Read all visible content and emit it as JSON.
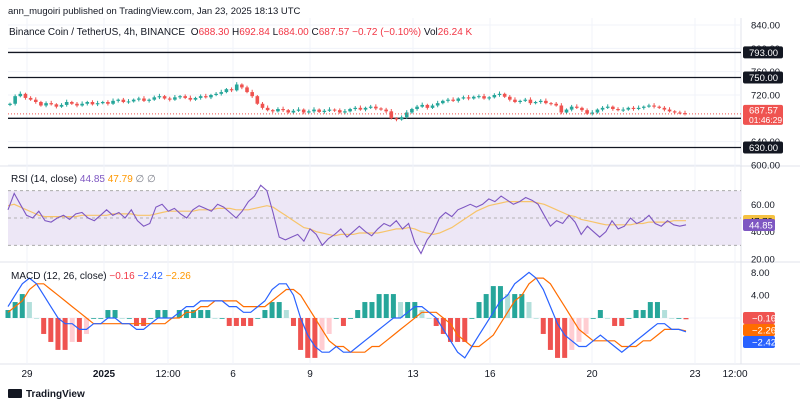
{
  "publisher": "ann_mugoiri published on TradingView.com, Jan 23, 2025 18:13 UTC",
  "instrument": {
    "title": "Binance Coin / TetherUS, 4h, BINANCE",
    "o_label": "O",
    "o": "688.30",
    "h_label": "H",
    "h": "692.84",
    "l_label": "L",
    "l": "684.00",
    "c_label": "C",
    "c": "687.57",
    "change": "−0.72 (−0.10%)",
    "vol_label": "Vol",
    "vol": "26.24 K"
  },
  "rsi_legend": {
    "name": "RSI (14, close)",
    "v1": "44.85",
    "v2": "47.79",
    "extra": "∅ ∅"
  },
  "macd_legend": {
    "name": "MACD (12, 26, close)",
    "v1": "−0.16",
    "v2": "−2.42",
    "v3": "−2.26"
  },
  "logo_text": "TradingView",
  "colors": {
    "up": "#26a69a",
    "down": "#ef5350",
    "rsi": "#7e57c2",
    "rsi_ma": "#f7c46a",
    "macd": "#2962ff",
    "signal": "#ff6d00",
    "hist_up": "#26a69a",
    "hist_up_light": "#b2dfdb",
    "hist_down": "#ef5350",
    "hist_down_light": "#ffcdd2",
    "rsi_band": "#ede7f6"
  },
  "chart_data": [
    {
      "type": "candlestick",
      "title": "Binance Coin / TetherUS, 4h, BINANCE",
      "ylim": [
        600,
        840
      ],
      "y_ticks": [
        "840.00",
        "800.00",
        "760.00",
        "720.00",
        "680.00",
        "640.00",
        "600.00"
      ],
      "x_ticks": [
        "29",
        "2025",
        "12:00",
        "6",
        "9",
        "13",
        "16",
        "20",
        "23",
        "12:00"
      ],
      "horizontal_levels": [
        {
          "value": 793,
          "label": "793.00"
        },
        {
          "value": 750,
          "label": "750.00"
        },
        {
          "value": 680,
          "label": "680.00"
        },
        {
          "value": 630,
          "label": "630.00"
        }
      ],
      "last_price": {
        "value": 687.57,
        "label": "687.57",
        "countdown": "01:46:29"
      },
      "close_path": [
        705,
        718,
        722,
        715,
        712,
        708,
        702,
        706,
        704,
        700,
        703,
        708,
        705,
        702,
        705,
        708,
        704,
        706,
        708,
        705,
        710,
        712,
        708,
        709,
        712,
        714,
        710,
        712,
        716,
        718,
        714,
        712,
        716,
        718,
        715,
        712,
        715,
        718,
        716,
        720,
        722,
        725,
        730,
        728,
        738,
        733,
        725,
        718,
        705,
        698,
        694,
        692,
        696,
        694,
        690,
        693,
        695,
        690,
        692,
        695,
        691,
        693,
        695,
        694,
        690,
        692,
        696,
        698,
        695,
        698,
        700,
        697,
        695,
        692,
        680,
        678,
        682,
        690,
        696,
        700,
        703,
        698,
        702,
        706,
        710,
        712,
        710,
        714,
        716,
        714,
        717,
        718,
        714,
        716,
        720,
        722,
        717,
        712,
        708,
        710,
        712,
        706,
        708,
        710,
        706,
        705,
        702,
        690,
        695,
        700,
        698,
        694,
        688,
        690,
        695,
        698,
        700,
        696,
        694,
        695,
        698,
        696,
        698,
        700,
        702,
        700,
        698,
        695,
        692,
        690,
        689,
        688
      ]
    },
    {
      "type": "line",
      "title": "RSI (14, close)",
      "ylim": [
        20,
        80
      ],
      "y_ticks": [
        "60.00",
        "40.00",
        "20.00"
      ],
      "bands": [
        70,
        50,
        30
      ],
      "series": [
        {
          "name": "RSI",
          "last": 44.85,
          "label": "44.85",
          "values": [
            56,
            68,
            60,
            52,
            50,
            55,
            48,
            47,
            50,
            52,
            49,
            53,
            54,
            50,
            48,
            52,
            56,
            52,
            54,
            50,
            56,
            48,
            44,
            46,
            58,
            60,
            55,
            57,
            53,
            50,
            56,
            59,
            57,
            55,
            60,
            58,
            54,
            50,
            55,
            62,
            66,
            74,
            70,
            54,
            36,
            34,
            36,
            38,
            33,
            42,
            38,
            30,
            35,
            38,
            42,
            36,
            40,
            44,
            40,
            37,
            42,
            46,
            44,
            48,
            42,
            46,
            32,
            24,
            34,
            40,
            50,
            54,
            51,
            56,
            58,
            60,
            58,
            60,
            64,
            62,
            66,
            63,
            60,
            62,
            65,
            63,
            60,
            52,
            44,
            48,
            46,
            52,
            47,
            38,
            44,
            40,
            36,
            40,
            48,
            42,
            44,
            50,
            46,
            48,
            52,
            46,
            44,
            48,
            45,
            44,
            45
          ]
        },
        {
          "name": "RSI-based MA",
          "last": 47.79,
          "label": "47.79",
          "values": [
            59,
            60,
            58,
            56,
            54,
            52,
            51,
            51,
            51,
            51,
            51,
            51,
            52,
            52,
            52,
            52,
            52,
            53,
            53,
            53,
            53,
            52,
            52,
            52,
            53,
            54,
            55,
            55,
            55,
            55,
            55,
            56,
            56,
            56,
            57,
            57,
            57,
            56,
            56,
            56,
            57,
            58,
            59,
            58,
            55,
            52,
            49,
            46,
            43,
            42,
            40,
            39,
            38,
            37,
            38,
            38,
            38,
            39,
            39,
            39,
            39,
            40,
            41,
            42,
            42,
            43,
            42,
            40,
            39,
            38,
            39,
            41,
            43,
            46,
            49,
            52,
            55,
            57,
            59,
            60,
            61,
            62,
            62,
            62,
            62,
            62,
            61,
            60,
            58,
            56,
            54,
            52,
            51,
            49,
            48,
            47,
            46,
            45,
            45,
            45,
            45,
            45,
            46,
            46,
            47,
            47,
            47,
            47,
            48,
            48,
            48
          ]
        }
      ]
    },
    {
      "type": "line",
      "title": "MACD (12, 26, close)",
      "ylim": [
        -8,
        10
      ],
      "y_ticks": [
        "8.00",
        "4.00"
      ],
      "series": [
        {
          "name": "MACD",
          "last": -2.42,
          "label": "−2.42",
          "values": [
            2,
            4,
            6,
            7,
            6,
            4,
            2,
            0,
            -1,
            -1,
            -2,
            -2,
            -1,
            -1,
            0,
            0,
            -1,
            -1,
            -2,
            -2,
            -1,
            0,
            0,
            0,
            1,
            2,
            2,
            3,
            3,
            3,
            3,
            2,
            2,
            1,
            1,
            2,
            3,
            5,
            6,
            6,
            4,
            0,
            -3,
            -5,
            -6,
            -6,
            -5,
            -6,
            -6,
            -5,
            -4,
            -3,
            -2,
            -1,
            0,
            0,
            1,
            2,
            2,
            1,
            0,
            -2,
            -4,
            -6,
            -7,
            -5,
            -3,
            -1,
            1,
            3,
            4,
            6,
            7,
            8,
            7,
            5,
            2,
            -1,
            -3,
            -4,
            -5,
            -5,
            -4,
            -3,
            -4,
            -5,
            -6,
            -5,
            -4,
            -3,
            -2,
            -1,
            -1,
            -2,
            -2,
            -2.42
          ]
        },
        {
          "name": "Signal",
          "last": -2.26,
          "label": "−2.26",
          "values": [
            1,
            2,
            3,
            5,
            6,
            6,
            5,
            4,
            3,
            2,
            1,
            0,
            -1,
            -1,
            -1,
            -1,
            -1,
            -1,
            -1,
            -1,
            -1,
            -1,
            -1,
            0,
            0,
            1,
            1,
            2,
            2,
            3,
            3,
            3,
            3,
            2,
            2,
            2,
            2,
            3,
            4,
            5,
            5,
            4,
            2,
            0,
            -2,
            -4,
            -5,
            -5,
            -6,
            -6,
            -6,
            -5,
            -5,
            -4,
            -3,
            -2,
            -1,
            0,
            1,
            1,
            1,
            0,
            -1,
            -3,
            -4,
            -5,
            -5,
            -4,
            -3,
            -1,
            1,
            3,
            4,
            6,
            7,
            7,
            6,
            4,
            2,
            0,
            -2,
            -3,
            -4,
            -4,
            -4,
            -4,
            -5,
            -5,
            -5,
            -4,
            -4,
            -3,
            -2,
            -2,
            -2,
            -2.26
          ]
        },
        {
          "name": "Histogram",
          "last": -0.16,
          "label": "−0.16"
        }
      ]
    }
  ]
}
